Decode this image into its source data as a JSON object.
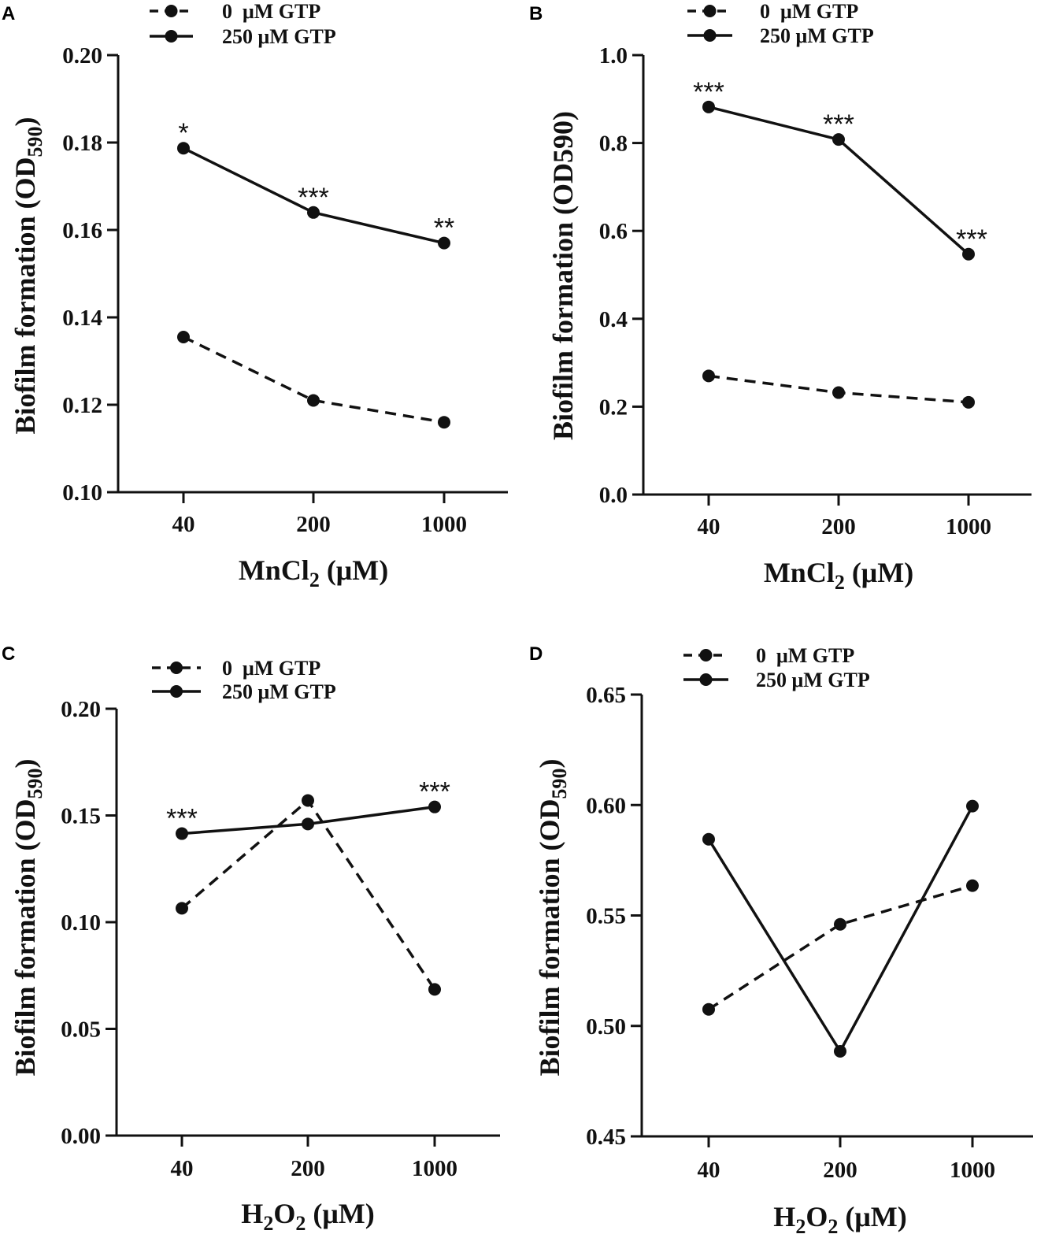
{
  "chart_data": [
    {
      "type": "line",
      "panel": "A",
      "categories": [
        "40",
        "200",
        "1000"
      ],
      "xlabel": {
        "main": "MnCl",
        "sub": "2",
        "suffix": " (μM)"
      },
      "ylabel": {
        "main": "Biofilm formation (OD",
        "sub": "590",
        "suffix": ")"
      },
      "ylim": [
        0.1,
        0.2
      ],
      "yticks": [
        "0.10",
        "0.12",
        "0.14",
        "0.16",
        "0.18",
        "0.20"
      ],
      "series": [
        {
          "name": "0  μM GTP",
          "style": "dashed",
          "values": [
            0.1355,
            0.121,
            0.116
          ]
        },
        {
          "name": "250 μM GTP",
          "style": "solid",
          "values": [
            0.1787,
            0.164,
            0.157
          ]
        }
      ],
      "annotations": [
        "*",
        "***",
        "**"
      ],
      "legend": "top-left"
    },
    {
      "type": "line",
      "panel": "B",
      "categories": [
        "40",
        "200",
        "1000"
      ],
      "xlabel": {
        "main": "MnCl",
        "sub": "2",
        "suffix": " (μM)"
      },
      "ylabel": {
        "main": "Biofilm formation (OD590)",
        "sub": "",
        "suffix": ""
      },
      "ylim": [
        0.0,
        1.0
      ],
      "yticks": [
        "0.0",
        "0.2",
        "0.4",
        "0.6",
        "0.8",
        "1.0"
      ],
      "series": [
        {
          "name": "0  μM GTP",
          "style": "dashed",
          "values": [
            0.27,
            0.232,
            0.21
          ]
        },
        {
          "name": "250 μM GTP",
          "style": "solid",
          "values": [
            0.882,
            0.808,
            0.547
          ]
        }
      ],
      "annotations": [
        "***",
        "***",
        "***"
      ],
      "legend": "top-left"
    },
    {
      "type": "line",
      "panel": "C",
      "categories": [
        "40",
        "200",
        "1000"
      ],
      "xlabel": {
        "main": "H",
        "sub": "2",
        "mid": "O",
        "sub2": "2",
        "suffix": " (μM)"
      },
      "ylabel": {
        "main": "Biofilm formation (OD",
        "sub": "590",
        "suffix": ")"
      },
      "ylim": [
        0.0,
        0.2
      ],
      "yticks": [
        "0.00",
        "0.05",
        "0.10",
        "0.15",
        "0.20"
      ],
      "series": [
        {
          "name": "0  μM GTP",
          "style": "dashed",
          "values": [
            0.1065,
            0.157,
            0.0685
          ]
        },
        {
          "name": "250 μM GTP",
          "style": "solid",
          "values": [
            0.1415,
            0.146,
            0.154
          ]
        }
      ],
      "annotations": [
        "***",
        "",
        "***"
      ],
      "legend": "top-left"
    },
    {
      "type": "line",
      "panel": "D",
      "categories": [
        "40",
        "200",
        "1000"
      ],
      "xlabel": {
        "main": "H",
        "sub": "2",
        "mid": "O",
        "sub2": "2",
        "suffix": " (μM)"
      },
      "ylabel": {
        "main": "Biofilm formation (OD",
        "sub": "590",
        "suffix": ")"
      },
      "ylim": [
        0.45,
        0.65
      ],
      "yticks": [
        "0.45",
        "0.50",
        "0.55",
        "0.60",
        "0.65"
      ],
      "series": [
        {
          "name": "0  μM GTP",
          "style": "dashed",
          "values": [
            0.5075,
            0.546,
            0.5635
          ]
        },
        {
          "name": "250 μM GTP",
          "style": "solid",
          "values": [
            0.5845,
            0.4885,
            0.5995
          ]
        }
      ],
      "annotations": [
        "",
        "",
        ""
      ],
      "legend": "top-left"
    }
  ]
}
